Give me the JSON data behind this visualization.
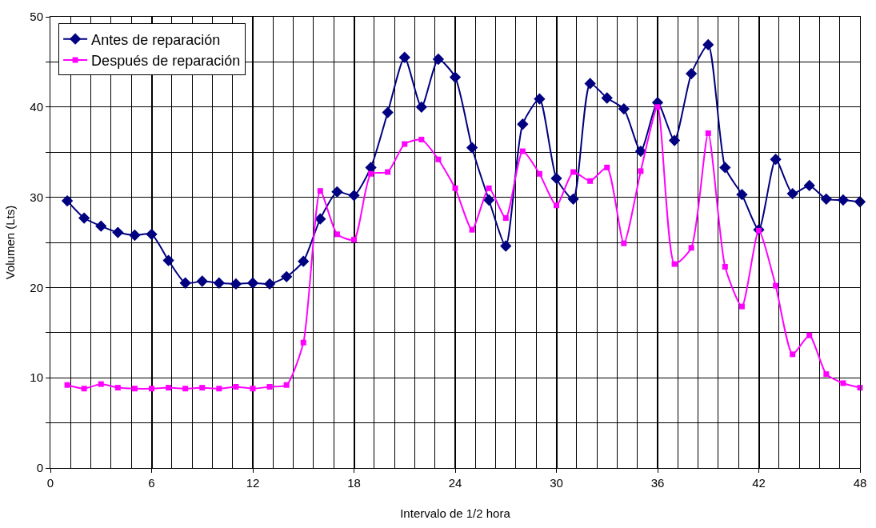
{
  "chart_data": {
    "type": "line",
    "xlabel": "Intervalo de 1/2 hora",
    "ylabel": "Volumen (Lts)",
    "x": [
      1,
      2,
      3,
      4,
      5,
      6,
      7,
      8,
      9,
      10,
      11,
      12,
      13,
      14,
      15,
      16,
      17,
      18,
      19,
      20,
      21,
      22,
      23,
      24,
      25,
      26,
      27,
      28,
      29,
      30,
      31,
      32,
      33,
      34,
      35,
      36,
      37,
      38,
      39,
      40,
      41,
      42,
      43,
      44,
      45,
      46,
      47,
      48
    ],
    "series": [
      {
        "name": "Antes de reparación",
        "color": "#000080",
        "marker": "diamond",
        "values": [
          29.6,
          27.7,
          26.8,
          26.1,
          25.8,
          25.9,
          23.0,
          20.5,
          20.7,
          20.5,
          20.4,
          20.5,
          20.4,
          21.2,
          22.9,
          27.6,
          30.6,
          30.2,
          33.3,
          39.4,
          45.5,
          40.0,
          45.3,
          43.3,
          35.5,
          29.7,
          24.6,
          38.1,
          40.9,
          32.1,
          29.8,
          42.6,
          41.0,
          39.8,
          35.1,
          40.5,
          36.3,
          43.7,
          46.9,
          33.3,
          30.3,
          26.4,
          34.2,
          30.4,
          31.3,
          29.8,
          29.7,
          29.5
        ]
      },
      {
        "name": "Después de reparación",
        "color": "#ff00ff",
        "marker": "square",
        "values": [
          9.2,
          8.8,
          9.3,
          8.9,
          8.8,
          8.8,
          8.9,
          8.8,
          8.9,
          8.8,
          9.0,
          8.8,
          9.0,
          9.2,
          13.9,
          30.7,
          25.9,
          25.3,
          32.6,
          32.8,
          35.9,
          36.4,
          34.2,
          31.0,
          26.4,
          31.0,
          27.7,
          35.1,
          32.6,
          29.1,
          32.8,
          31.8,
          33.3,
          24.9,
          32.9,
          40.0,
          22.6,
          24.4,
          37.1,
          22.3,
          17.9,
          26.3,
          20.2,
          12.6,
          14.7,
          10.4,
          9.4,
          8.9
        ]
      }
    ],
    "xlim": [
      0,
      48
    ],
    "xticks": [
      0,
      {
        "value": 1.2,
        "label": null
      },
      {
        "value": 2.4,
        "label": null
      },
      {
        "value": 3.6,
        "label": null
      },
      {
        "value": 4.8,
        "label": null
      },
      6,
      {
        "value": 7.2,
        "label": null
      },
      {
        "value": 8.4,
        "label": null
      },
      {
        "value": 9.6,
        "label": null
      },
      {
        "value": 10.8,
        "label": null
      },
      12,
      {
        "value": 13.2,
        "label": null
      },
      {
        "value": 14.4,
        "label": null
      },
      {
        "value": 15.6,
        "label": null
      },
      {
        "value": 16.8,
        "label": null
      },
      18,
      {
        "value": 19.2,
        "label": null
      },
      {
        "value": 20.4,
        "label": null
      },
      {
        "value": 21.6,
        "label": null
      },
      {
        "value": 22.8,
        "label": null
      },
      24,
      {
        "value": 25.2,
        "label": null
      },
      {
        "value": 26.4,
        "label": null
      },
      {
        "value": 27.6,
        "label": null
      },
      {
        "value": 28.8,
        "label": null
      },
      30,
      {
        "value": 31.2,
        "label": null
      },
      {
        "value": 32.4,
        "label": null
      },
      {
        "value": 33.6,
        "label": null
      },
      {
        "value": 34.8,
        "label": null
      },
      36,
      {
        "value": 37.2,
        "label": null
      },
      {
        "value": 38.4,
        "label": null
      },
      {
        "value": 39.6,
        "label": null
      },
      {
        "value": 40.8,
        "label": null
      },
      42,
      {
        "value": 43.2,
        "label": null
      },
      {
        "value": 44.4,
        "label": null
      },
      {
        "value": 45.6,
        "label": null
      },
      {
        "value": 46.8,
        "label": null
      },
      48
    ],
    "ylim": [
      0,
      50
    ],
    "yticks": [
      0,
      {
        "value": 5,
        "label": null
      },
      10,
      {
        "value": 15,
        "label": null
      },
      20,
      {
        "value": 25,
        "label": null
      },
      30,
      {
        "value": 35,
        "label": null
      },
      40,
      {
        "value": 45,
        "label": null
      },
      50
    ],
    "grid": true,
    "legend": "top left",
    "line_style": "solid"
  }
}
